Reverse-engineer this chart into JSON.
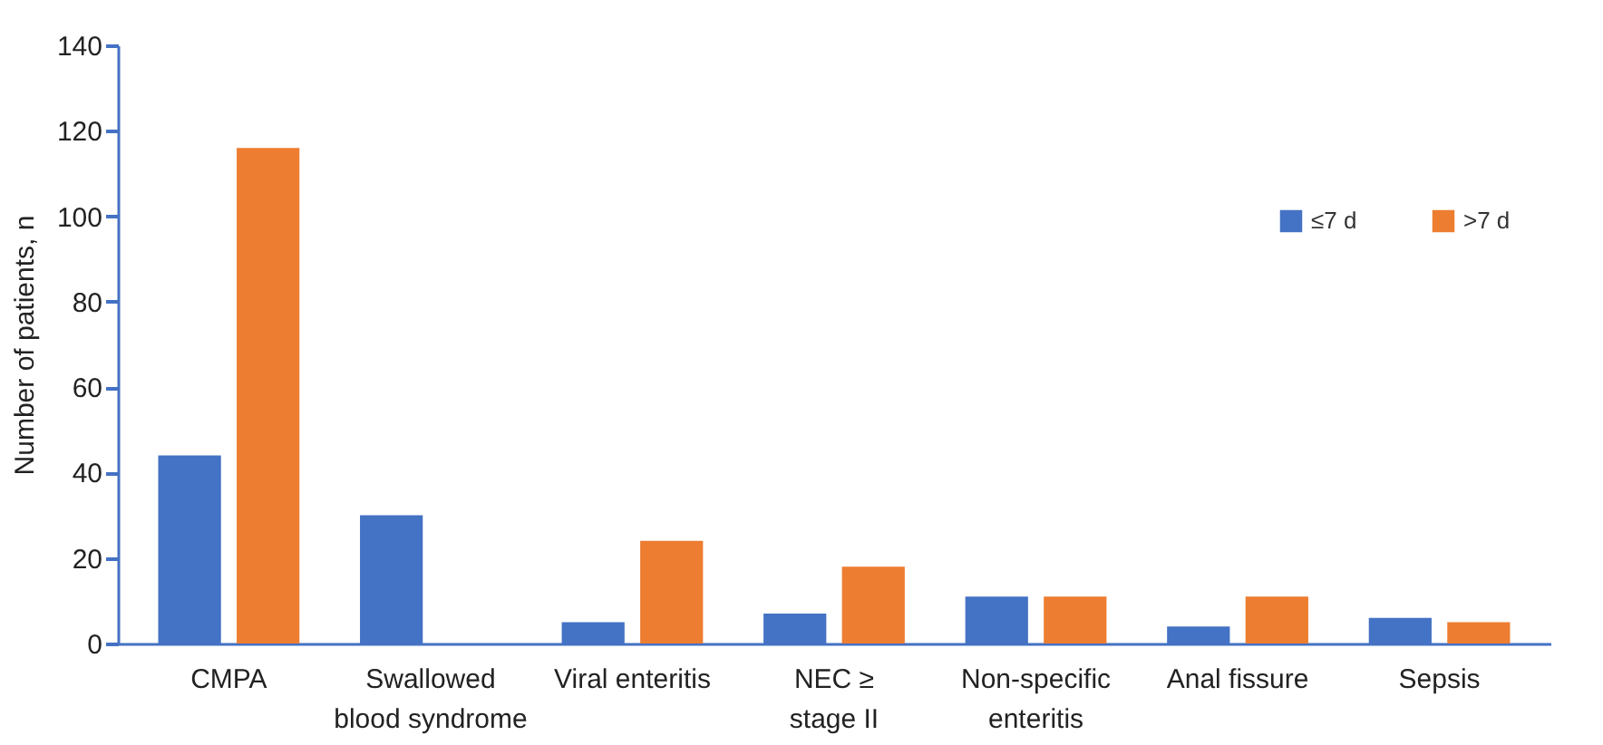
{
  "chart_data": {
    "type": "bar",
    "ylabel": "Number of patients, n",
    "categories": [
      "CMPA",
      "Swallowed\nblood syndrome",
      "Viral enteritis",
      "NEC ≥\nstage II",
      "Non-specific\nenteritis",
      "Anal fissure",
      "Sepsis"
    ],
    "series": [
      {
        "name": "≤7 d",
        "color": "#4472c4",
        "values": [
          44,
          30,
          5,
          7,
          11,
          4,
          6
        ]
      },
      {
        "name": ">7 d",
        "color": "#ed7d31",
        "values": [
          116,
          0,
          24,
          18,
          11,
          11,
          5
        ]
      }
    ],
    "ylim": [
      0,
      140
    ],
    "yticks": [
      0,
      20,
      40,
      60,
      80,
      100,
      120,
      140
    ],
    "grid": false,
    "legend": "top right"
  }
}
